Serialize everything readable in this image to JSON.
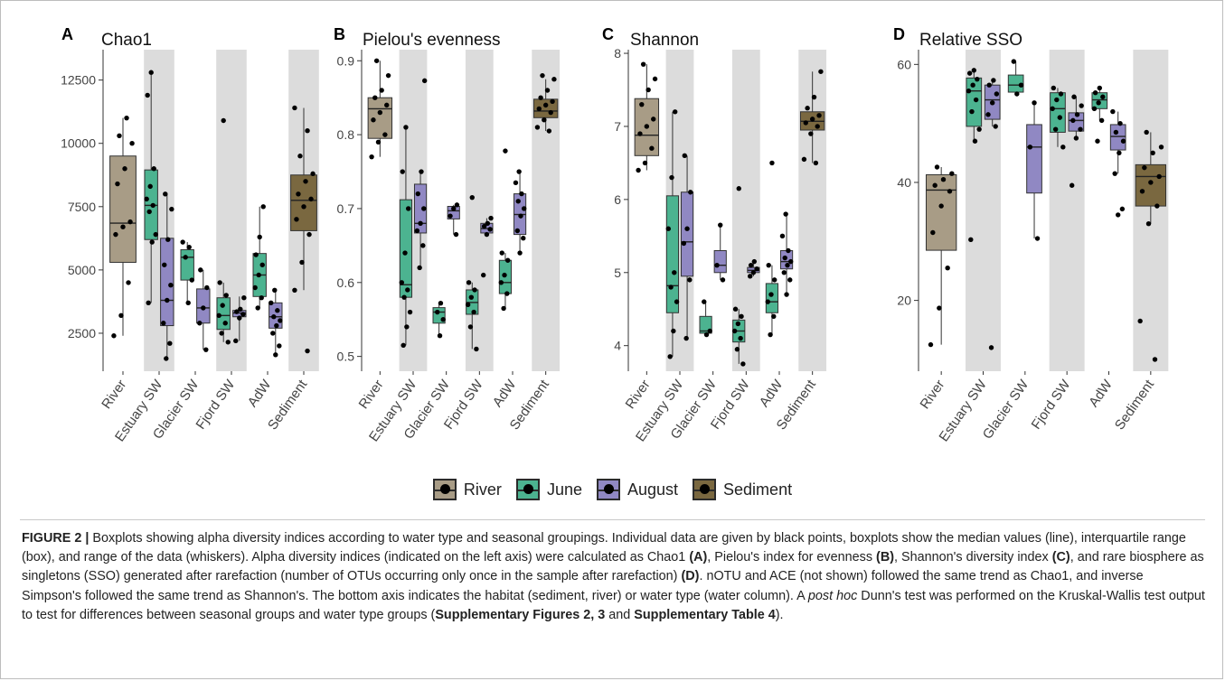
{
  "chart_data": [
    {
      "type": "box",
      "panel": "A",
      "title": "Chao1",
      "ylim": [
        1000,
        13700
      ],
      "yticks": [
        2500,
        5000,
        7500,
        10000,
        12500
      ],
      "categories": [
        "River",
        "Estuary SW",
        "Glacier SW",
        "Fjord SW",
        "AdW",
        "Sediment"
      ],
      "shaded_categories": [
        "Estuary SW",
        "Fjord SW",
        "Sediment"
      ],
      "boxes": [
        {
          "category": "River",
          "group": "River",
          "min": 2400,
          "q1": 5300,
          "median": 6850,
          "q3": 9500,
          "max": 11000,
          "points": [
            2400,
            3200,
            4500,
            6400,
            6700,
            6900,
            8400,
            9000,
            10000,
            10300,
            11000
          ]
        },
        {
          "category": "Estuary SW",
          "group": "June",
          "min": 3700,
          "q1": 6200,
          "median": 7550,
          "q3": 8950,
          "max": 12800,
          "points": [
            3700,
            6100,
            6400,
            7300,
            7550,
            7800,
            8300,
            9000,
            11900,
            12800
          ]
        },
        {
          "category": "Estuary SW",
          "group": "August",
          "min": 1500,
          "q1": 2800,
          "median": 3800,
          "q3": 6250,
          "max": 8000,
          "points": [
            1500,
            2100,
            2900,
            3800,
            4400,
            5200,
            6200,
            7400,
            8000
          ]
        },
        {
          "category": "Glacier SW",
          "group": "June",
          "min": 3700,
          "q1": 4600,
          "median": 5500,
          "q3": 5800,
          "max": 6100,
          "points": [
            3700,
            4600,
            5500,
            5900,
            6100
          ]
        },
        {
          "category": "Glacier SW",
          "group": "August",
          "min": 1850,
          "q1": 2900,
          "median": 3500,
          "q3": 4250,
          "max": 5000,
          "points": [
            1850,
            2900,
            3500,
            4300,
            5000
          ]
        },
        {
          "category": "Fjord SW",
          "group": "June",
          "min": 2150,
          "q1": 2650,
          "median": 3200,
          "q3": 3900,
          "max": 4500,
          "points": [
            2150,
            2500,
            2900,
            3200,
            3600,
            4000,
            4500,
            10900
          ]
        },
        {
          "category": "Fjord SW",
          "group": "August",
          "min": 2200,
          "q1": 3150,
          "median": 3300,
          "q3": 3400,
          "max": 3950,
          "points": [
            2200,
            3100,
            3250,
            3350,
            3450,
            3900
          ]
        },
        {
          "category": "AdW",
          "group": "June",
          "min": 3500,
          "q1": 3950,
          "median": 4800,
          "q3": 5650,
          "max": 7500,
          "points": [
            3500,
            3900,
            4300,
            4800,
            5200,
            5600,
            6300,
            7500
          ]
        },
        {
          "category": "AdW",
          "group": "August",
          "min": 1650,
          "q1": 2700,
          "median": 3150,
          "q3": 3700,
          "max": 4200,
          "points": [
            1650,
            2000,
            2500,
            2800,
            3000,
            3150,
            3400,
            3700,
            4200
          ]
        },
        {
          "category": "Sediment",
          "group": "Sediment",
          "min": 4200,
          "q1": 6550,
          "median": 7750,
          "q3": 8750,
          "max": 11400,
          "points": [
            1800,
            4200,
            5300,
            6400,
            7000,
            7500,
            7800,
            8000,
            8500,
            8800,
            9500,
            10500,
            11400
          ]
        }
      ]
    },
    {
      "type": "box",
      "panel": "B",
      "title": "Pielou's evenness",
      "ylim": [
        0.48,
        0.915
      ],
      "yticks": [
        0.5,
        0.6,
        0.7,
        0.8,
        0.9
      ],
      "categories": [
        "River",
        "Estuary SW",
        "Glacier SW",
        "Fjord SW",
        "AdW",
        "Sediment"
      ],
      "shaded_categories": [
        "Estuary SW",
        "Fjord SW",
        "Sediment"
      ],
      "boxes": [
        {
          "category": "River",
          "group": "River",
          "min": 0.77,
          "q1": 0.795,
          "median": 0.835,
          "q3": 0.85,
          "max": 0.9,
          "points": [
            0.77,
            0.79,
            0.8,
            0.82,
            0.83,
            0.84,
            0.85,
            0.86,
            0.88,
            0.9
          ]
        },
        {
          "category": "Estuary SW",
          "group": "June",
          "min": 0.515,
          "q1": 0.58,
          "median": 0.597,
          "q3": 0.712,
          "max": 0.812,
          "points": [
            0.515,
            0.54,
            0.56,
            0.58,
            0.59,
            0.6,
            0.64,
            0.7,
            0.75,
            0.81
          ]
        },
        {
          "category": "Estuary SW",
          "group": "August",
          "min": 0.62,
          "q1": 0.667,
          "median": 0.68,
          "q3": 0.733,
          "max": 0.75,
          "points": [
            0.62,
            0.65,
            0.67,
            0.68,
            0.7,
            0.72,
            0.75,
            0.873
          ]
        },
        {
          "category": "Glacier SW",
          "group": "June",
          "min": 0.528,
          "q1": 0.545,
          "median": 0.56,
          "q3": 0.566,
          "max": 0.572,
          "points": [
            0.528,
            0.55,
            0.56,
            0.572
          ]
        },
        {
          "category": "Glacier SW",
          "group": "August",
          "min": 0.665,
          "q1": 0.686,
          "median": 0.697,
          "q3": 0.703,
          "max": 0.705,
          "points": [
            0.665,
            0.69,
            0.7,
            0.705
          ]
        },
        {
          "category": "Fjord SW",
          "group": "June",
          "min": 0.51,
          "q1": 0.557,
          "median": 0.573,
          "q3": 0.59,
          "max": 0.6,
          "points": [
            0.51,
            0.54,
            0.56,
            0.57,
            0.58,
            0.59,
            0.6,
            0.715
          ]
        },
        {
          "category": "Fjord SW",
          "group": "August",
          "min": 0.662,
          "q1": 0.667,
          "median": 0.673,
          "q3": 0.68,
          "max": 0.687,
          "points": [
            0.61,
            0.665,
            0.672,
            0.676,
            0.68,
            0.687
          ]
        },
        {
          "category": "AdW",
          "group": "June",
          "min": 0.565,
          "q1": 0.585,
          "median": 0.6,
          "q3": 0.63,
          "max": 0.64,
          "points": [
            0.565,
            0.585,
            0.6,
            0.61,
            0.63,
            0.64,
            0.778
          ]
        },
        {
          "category": "AdW",
          "group": "August",
          "min": 0.64,
          "q1": 0.665,
          "median": 0.692,
          "q3": 0.72,
          "max": 0.75,
          "points": [
            0.64,
            0.66,
            0.67,
            0.69,
            0.7,
            0.71,
            0.72,
            0.735,
            0.75
          ]
        },
        {
          "category": "Sediment",
          "group": "Sediment",
          "min": 0.805,
          "q1": 0.823,
          "median": 0.832,
          "q3": 0.848,
          "max": 0.875,
          "points": [
            0.805,
            0.81,
            0.82,
            0.83,
            0.835,
            0.84,
            0.845,
            0.85,
            0.86,
            0.875,
            0.88
          ]
        }
      ]
    },
    {
      "type": "box",
      "panel": "C",
      "title": "Shannon",
      "ylim": [
        3.65,
        8.05
      ],
      "yticks": [
        4,
        5,
        6,
        7,
        8
      ],
      "categories": [
        "River",
        "Estuary SW",
        "Glacier SW",
        "Fjord SW",
        "AdW",
        "Sediment"
      ],
      "shaded_categories": [
        "Estuary SW",
        "Fjord SW",
        "Sediment"
      ],
      "boxes": [
        {
          "category": "River",
          "group": "River",
          "min": 6.4,
          "q1": 6.6,
          "median": 6.88,
          "q3": 7.38,
          "max": 7.85,
          "points": [
            6.4,
            6.5,
            6.7,
            6.9,
            7.0,
            7.1,
            7.3,
            7.5,
            7.65,
            7.85
          ]
        },
        {
          "category": "Estuary SW",
          "group": "June",
          "min": 3.85,
          "q1": 4.45,
          "median": 4.82,
          "q3": 6.05,
          "max": 7.2,
          "points": [
            3.85,
            4.2,
            4.6,
            4.8,
            5.0,
            5.6,
            6.3,
            7.2
          ]
        },
        {
          "category": "Estuary SW",
          "group": "August",
          "min": 4.1,
          "q1": 4.95,
          "median": 5.42,
          "q3": 6.1,
          "max": 6.6,
          "points": [
            4.1,
            4.9,
            5.4,
            5.6,
            6.1,
            6.6
          ]
        },
        {
          "category": "Glacier SW",
          "group": "June",
          "min": 4.15,
          "q1": 4.17,
          "median": 4.2,
          "q3": 4.4,
          "max": 4.6,
          "points": [
            4.15,
            4.2,
            4.6
          ]
        },
        {
          "category": "Glacier SW",
          "group": "August",
          "min": 4.9,
          "q1": 5.0,
          "median": 5.1,
          "q3": 5.3,
          "max": 5.65,
          "points": [
            4.9,
            5.1,
            5.65
          ]
        },
        {
          "category": "Fjord SW",
          "group": "June",
          "min": 3.75,
          "q1": 4.05,
          "median": 4.2,
          "q3": 4.35,
          "max": 4.5,
          "points": [
            3.75,
            3.95,
            4.1,
            4.2,
            4.3,
            4.4,
            4.5,
            6.15
          ]
        },
        {
          "category": "Fjord SW",
          "group": "August",
          "min": 4.95,
          "q1": 5.0,
          "median": 5.03,
          "q3": 5.07,
          "max": 5.15,
          "points": [
            4.95,
            5.0,
            5.05,
            5.1,
            5.15
          ]
        },
        {
          "category": "AdW",
          "group": "June",
          "min": 4.15,
          "q1": 4.45,
          "median": 4.6,
          "q3": 4.85,
          "max": 5.1,
          "points": [
            4.15,
            4.4,
            4.6,
            4.7,
            4.9,
            5.1,
            6.5
          ]
        },
        {
          "category": "AdW",
          "group": "August",
          "min": 4.7,
          "q1": 5.05,
          "median": 5.15,
          "q3": 5.3,
          "max": 5.8,
          "points": [
            4.7,
            4.9,
            5.0,
            5.1,
            5.15,
            5.2,
            5.3,
            5.5,
            5.8
          ]
        },
        {
          "category": "Sediment",
          "group": "Sediment",
          "min": 6.5,
          "q1": 6.95,
          "median": 7.07,
          "q3": 7.2,
          "max": 7.75,
          "points": [
            6.5,
            6.55,
            6.9,
            7.0,
            7.05,
            7.1,
            7.15,
            7.25,
            7.4,
            7.75
          ]
        }
      ]
    },
    {
      "type": "box",
      "panel": "D",
      "title": "Relative SSO",
      "ylim": [
        8,
        62.5
      ],
      "yticks": [
        20,
        40,
        60
      ],
      "categories": [
        "River",
        "Estuary SW",
        "Glacier SW",
        "Fjord SW",
        "AdW",
        "Sediment"
      ],
      "shaded_categories": [
        "Estuary SW",
        "Fjord SW",
        "Sediment"
      ],
      "boxes": [
        {
          "category": "River",
          "group": "River",
          "min": 12.5,
          "q1": 28.5,
          "median": 38.7,
          "q3": 41.3,
          "max": 42.6,
          "points": [
            12.5,
            18.7,
            25.5,
            31.5,
            36,
            38.5,
            39.5,
            40.5,
            41.5,
            42.6
          ]
        },
        {
          "category": "Estuary SW",
          "group": "June",
          "min": 47,
          "q1": 49.5,
          "median": 55.5,
          "q3": 57.7,
          "max": 59,
          "points": [
            30.3,
            47,
            49,
            52,
            54,
            55.5,
            56.5,
            57.5,
            58.5,
            59
          ]
        },
        {
          "category": "Estuary SW",
          "group": "August",
          "min": 49.5,
          "q1": 50.7,
          "median": 54,
          "q3": 56.5,
          "max": 57.3,
          "points": [
            12,
            49.5,
            51.5,
            53.5,
            55,
            56.5,
            57.3
          ]
        },
        {
          "category": "Glacier SW",
          "group": "June",
          "min": 55,
          "q1": 55.3,
          "median": 56.5,
          "q3": 58.2,
          "max": 60.5,
          "points": [
            55,
            56.5,
            60.5
          ]
        },
        {
          "category": "Glacier SW",
          "group": "August",
          "min": 30.5,
          "q1": 38.2,
          "median": 46,
          "q3": 49.8,
          "max": 53.5,
          "points": [
            30.5,
            46,
            53.5
          ]
        },
        {
          "category": "Fjord SW",
          "group": "June",
          "min": 46,
          "q1": 48.5,
          "median": 52.5,
          "q3": 55.2,
          "max": 56,
          "points": [
            46,
            49,
            51,
            52.5,
            54,
            55,
            56
          ]
        },
        {
          "category": "Fjord SW",
          "group": "August",
          "min": 47.5,
          "q1": 48.7,
          "median": 50.5,
          "q3": 51.8,
          "max": 54.5,
          "points": [
            39.5,
            47.5,
            49,
            50.5,
            51.5,
            53,
            54.5
          ]
        },
        {
          "category": "AdW",
          "group": "June",
          "min": 50.5,
          "q1": 52.5,
          "median": 54,
          "q3": 55.2,
          "max": 56,
          "points": [
            47,
            50.5,
            52.5,
            53.5,
            54.5,
            55.2,
            56
          ]
        },
        {
          "category": "AdW",
          "group": "August",
          "min": 41.5,
          "q1": 45.5,
          "median": 47.8,
          "q3": 49.8,
          "max": 52,
          "points": [
            34.5,
            35.5,
            41.5,
            45,
            47,
            48.5,
            50,
            52
          ]
        },
        {
          "category": "Sediment",
          "group": "Sediment",
          "min": 33,
          "q1": 36,
          "median": 41,
          "q3": 43,
          "max": 48.5,
          "points": [
            10,
            16.5,
            33,
            36,
            38.5,
            40,
            41,
            42.5,
            45,
            46,
            48.5
          ]
        }
      ]
    }
  ],
  "panels": [
    {
      "letter": "A",
      "title": "Chao1"
    },
    {
      "letter": "B",
      "title": "Pielou's evenness"
    },
    {
      "letter": "C",
      "title": "Shannon"
    },
    {
      "letter": "D",
      "title": "Relative SSO"
    }
  ],
  "legend": {
    "placement": "bottom-center",
    "items": [
      {
        "label": "River",
        "color": "#a89c86"
      },
      {
        "label": "June",
        "color": "#4cb390"
      },
      {
        "label": "August",
        "color": "#9088c3"
      },
      {
        "label": "Sediment",
        "color": "#7a6840"
      }
    ]
  },
  "colors": {
    "River": "#a89c86",
    "June": "#4cb390",
    "August": "#9088c3",
    "Sediment": "#7a6840",
    "shade": "#dcdcdc",
    "points": "#000000"
  },
  "caption": {
    "figure_label": "FIGURE 2 |",
    "text_1": " Boxplots showing alpha diversity indices according to water type and seasonal groupings. Individual data are given by black points, boxplots show the median values (line), interquartile range (box), and range of the data (whiskers). Alpha diversity indices (indicated on the left axis) were calculated as Chao1 ",
    "ref_a": "(A)",
    "text_2": ", Pielou's index for evenness ",
    "ref_b": "(B)",
    "text_3": ", Shannon's diversity index ",
    "ref_c": "(C)",
    "text_4": ", and rare biosphere as singletons (SSO) generated after rarefaction (number of OTUs occurring only once in the sample after rarefaction) ",
    "ref_d": "(D)",
    "text_5": ". nOTU and ACE (not shown) followed the same trend as Chao1, and inverse Simpson's followed the same trend as Shannon's. The bottom axis indicates the habitat (sediment, river) or water type (water column). A ",
    "italic": "post hoc",
    "text_6": " Dunn's test was performed on the Kruskal-Wallis test output to test for differences between seasonal groups and water type groups (",
    "ref_supp": "Supplementary Figures 2, 3",
    "text_7": " and ",
    "ref_table": "Supplementary Table 4",
    "text_8": ")."
  }
}
